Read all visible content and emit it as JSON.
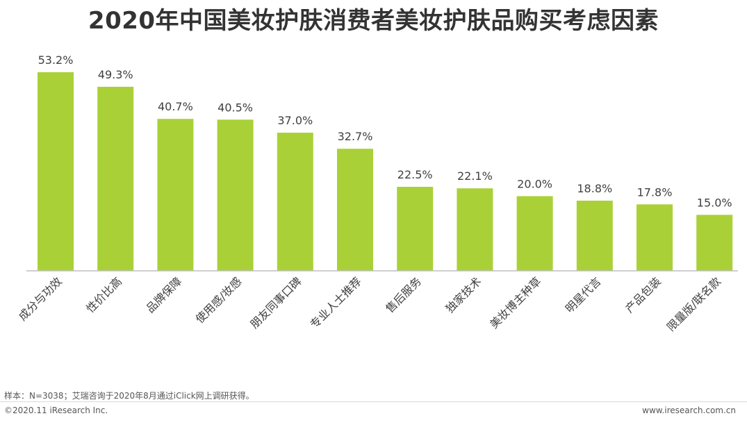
{
  "chart_data": {
    "type": "bar",
    "title": "2020年中国美妆护肤消费者美妆护肤品购买考虑因素",
    "categories": [
      "成分与功效",
      "性价比高",
      "品牌保障",
      "使用感/妆感",
      "朋友同事口碑",
      "专业人士推荐",
      "售后服务",
      "独家技术",
      "美妆博主种草",
      "明星代言",
      "产品包装",
      "限量版/联名款"
    ],
    "values": [
      53.2,
      49.3,
      40.7,
      40.5,
      37.0,
      32.7,
      22.5,
      22.1,
      20.0,
      18.8,
      17.8,
      15.0
    ],
    "value_labels": [
      "53.2%",
      "49.3%",
      "40.7%",
      "40.5%",
      "37.0%",
      "32.7%",
      "22.5%",
      "22.1%",
      "20.0%",
      "18.8%",
      "17.8%",
      "15.0%"
    ],
    "xlabel": "",
    "ylabel": "",
    "ylim": [
      0,
      53.2
    ],
    "grid": false,
    "bar_color": "#a9d137",
    "axis_color": "#bfbfbf"
  },
  "footer": {
    "source": "样本：N=3038；艾瑞咨询于2020年8月通过iClick网上调研获得。",
    "copyright": "©2020.11 iResearch Inc.",
    "website": "www.iresearch.com.cn"
  }
}
